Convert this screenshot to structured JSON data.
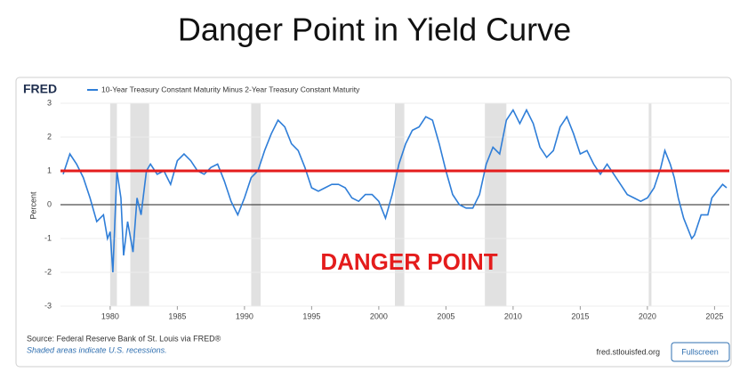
{
  "slide_title": "Danger Point in Yield Curve",
  "chart_data": {
    "type": "line",
    "brand": "FRED",
    "x": [
      1976.5,
      1977.0,
      1977.5,
      1978.0,
      1978.5,
      1979.0,
      1979.5,
      1979.8,
      1980.0,
      1980.2,
      1980.5,
      1980.8,
      1981.0,
      1981.3,
      1981.7,
      1982.0,
      1982.3,
      1982.7,
      1983.0,
      1983.5,
      1984.0,
      1984.5,
      1985.0,
      1985.5,
      1986.0,
      1986.5,
      1987.0,
      1987.5,
      1988.0,
      1988.5,
      1989.0,
      1989.5,
      1990.0,
      1990.5,
      1991.0,
      1991.5,
      1992.0,
      1992.5,
      1993.0,
      1993.5,
      1994.0,
      1994.5,
      1995.0,
      1995.5,
      1996.0,
      1996.5,
      1997.0,
      1997.5,
      1998.0,
      1998.5,
      1999.0,
      1999.5,
      2000.0,
      2000.5,
      2001.0,
      2001.5,
      2002.0,
      2002.5,
      2003.0,
      2003.5,
      2004.0,
      2004.5,
      2005.0,
      2005.5,
      2006.0,
      2006.5,
      2007.0,
      2007.5,
      2008.0,
      2008.5,
      2009.0,
      2009.5,
      2010.0,
      2010.5,
      2011.0,
      2011.5,
      2012.0,
      2012.5,
      2013.0,
      2013.5,
      2014.0,
      2014.5,
      2015.0,
      2015.5,
      2016.0,
      2016.5,
      2017.0,
      2017.5,
      2018.0,
      2018.5,
      2019.0,
      2019.5,
      2020.0,
      2020.5,
      2021.0,
      2021.3,
      2021.7,
      2022.0,
      2022.3,
      2022.7,
      2023.0,
      2023.3,
      2023.5,
      2024.0,
      2024.5,
      2024.8,
      2025.2,
      2025.6,
      2025.9
    ],
    "series": [
      {
        "name": "10-Year Treasury Constant Maturity Minus 2-Year Treasury Constant Maturity",
        "color": "#2f7ed8",
        "values": [
          0.9,
          1.5,
          1.2,
          0.8,
          0.2,
          -0.5,
          -0.3,
          -1.0,
          -0.8,
          -2.0,
          1.0,
          0.2,
          -1.5,
          -0.5,
          -1.4,
          0.2,
          -0.3,
          1.0,
          1.2,
          0.9,
          1.0,
          0.6,
          1.3,
          1.5,
          1.3,
          1.0,
          0.9,
          1.1,
          1.2,
          0.7,
          0.1,
          -0.3,
          0.2,
          0.8,
          1.0,
          1.6,
          2.1,
          2.5,
          2.3,
          1.8,
          1.6,
          1.1,
          0.5,
          0.4,
          0.5,
          0.6,
          0.6,
          0.5,
          0.2,
          0.1,
          0.3,
          0.3,
          0.1,
          -0.4,
          0.3,
          1.2,
          1.8,
          2.2,
          2.3,
          2.6,
          2.5,
          1.8,
          1.0,
          0.3,
          0.0,
          -0.1,
          -0.1,
          0.3,
          1.2,
          1.7,
          1.5,
          2.5,
          2.8,
          2.4,
          2.8,
          2.4,
          1.7,
          1.4,
          1.6,
          2.3,
          2.6,
          2.1,
          1.5,
          1.6,
          1.2,
          0.9,
          1.2,
          0.9,
          0.6,
          0.3,
          0.2,
          0.1,
          0.2,
          0.5,
          1.1,
          1.6,
          1.2,
          0.8,
          0.2,
          -0.4,
          -0.7,
          -1.0,
          -0.9,
          -0.3,
          -0.3,
          0.2,
          0.4,
          0.6,
          0.5
        ]
      }
    ],
    "recessions": [
      [
        1980.0,
        1980.5
      ],
      [
        1981.5,
        1982.9
      ],
      [
        1990.5,
        1991.2
      ],
      [
        2001.2,
        2001.9
      ],
      [
        2007.9,
        2009.5
      ],
      [
        2020.1,
        2020.3
      ]
    ],
    "recession_color": "#e1e1e1",
    "danger_line": 1,
    "danger_color": "#e41c1c",
    "annotation": "DANGER POINT",
    "y_label": "Percent",
    "xlim": [
      1976.3,
      2026.1
    ],
    "ylim": [
      -3,
      3
    ],
    "xticks": [
      1980,
      1985,
      1990,
      1995,
      2000,
      2005,
      2010,
      2015,
      2020,
      2025
    ],
    "yticks": [
      -3,
      -2,
      -1,
      0,
      1,
      2,
      3
    ],
    "source": "Source: Federal Reserve Bank of St. Louis via FRED®",
    "note": "Shaded areas indicate U.S. recessions.",
    "site": "fred.stlouisfed.org",
    "button": "Fullscreen"
  }
}
